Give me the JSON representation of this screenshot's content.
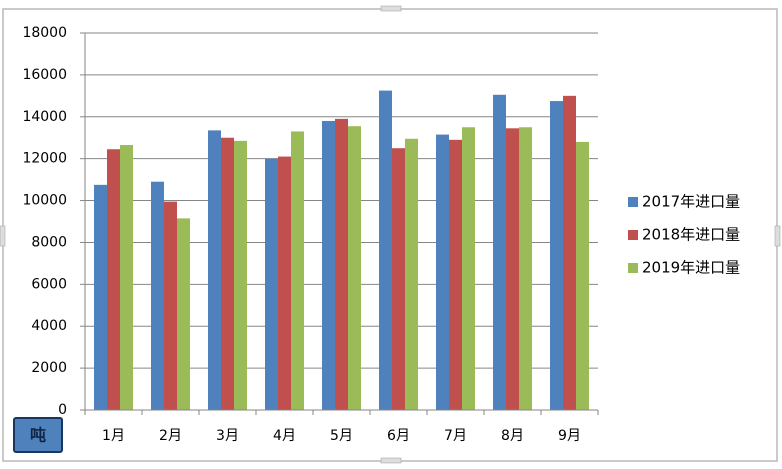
{
  "chart_data": {
    "type": "bar",
    "categories": [
      "1月",
      "2月",
      "3月",
      "4月",
      "5月",
      "6月",
      "7月",
      "8月",
      "9月"
    ],
    "series": [
      {
        "name": "2017年进口量",
        "color": "#4f81bd",
        "values": [
          10750,
          10900,
          13350,
          12000,
          13800,
          15250,
          13150,
          15050,
          14750
        ]
      },
      {
        "name": "2018年进口量",
        "color": "#c0504d",
        "values": [
          12450,
          9950,
          13000,
          12100,
          13900,
          12500,
          12900,
          13450,
          15000
        ]
      },
      {
        "name": "2019年进口量",
        "color": "#9bbb59",
        "values": [
          12650,
          9150,
          12850,
          13300,
          13550,
          12950,
          13500,
          13500,
          12800
        ]
      }
    ],
    "ylim": [
      0,
      18000
    ],
    "yticks": [
      0,
      2000,
      4000,
      6000,
      8000,
      10000,
      12000,
      14000,
      16000,
      18000
    ],
    "grid": true,
    "legend": "right",
    "unit": "吨"
  }
}
